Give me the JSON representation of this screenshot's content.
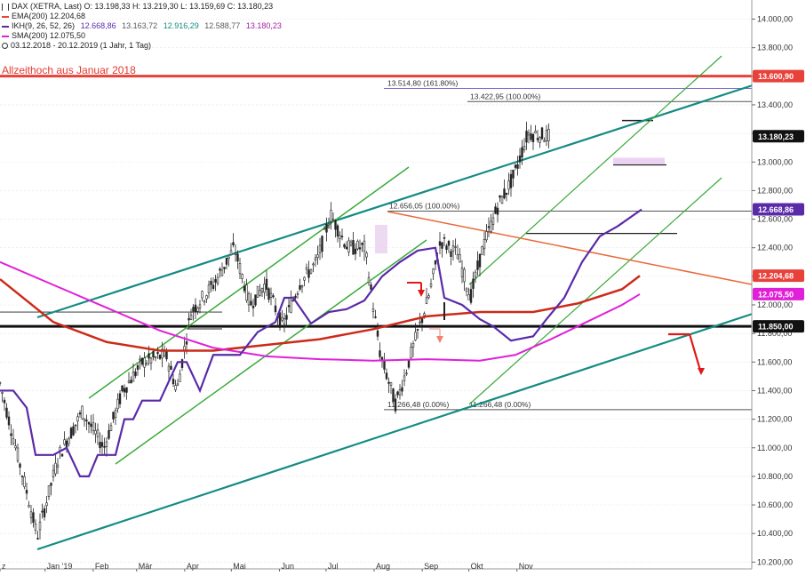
{
  "header": {
    "line1": "DAX (XETRA, Last)  O: 13.198,33  H: 13.219,30  L: 13.159,69  C: 13.180,23",
    "ema": "EMA(200)  12.204,68",
    "ikh_label": "IKH(9, 26, 52, 26)",
    "ikh_vals": [
      "12.668,86",
      "13.163,72",
      "12.916,29",
      "12.588,77",
      "13.180,23"
    ],
    "sma": "SMA(200)  12.075,50",
    "range": "03.12.2018 - 20.12.2019  (1 Jahr, 1 Tag)"
  },
  "annotation_ath": "Allzeithoch aus Januar 2018",
  "colors": {
    "ema": "#e8413a",
    "ema_dark": "#cc2a1a",
    "ikh": "#5a2aa8",
    "sma": "#e020d8",
    "channel_green": "#3aaa3a",
    "teal": "#148c82",
    "down_line": "#e86a3a",
    "ath_line": "#e8413a",
    "support": "#111111",
    "grid": "#d8d8d8",
    "candle": "#222222",
    "red_arrow": "#e01818"
  },
  "chart_data": {
    "type": "candlestick",
    "ylim": [
      10150,
      14150
    ],
    "y_ticks": [
      "14.000,00",
      "13.800,00",
      "13.600,00",
      "13.400,00",
      "13.200,00",
      "13.000,00",
      "12.800,00",
      "12.600,00",
      "12.400,00",
      "12.200,00",
      "12.000,00",
      "11.800,00",
      "11.600,00",
      "11.400,00",
      "11.200,00",
      "11.000,00",
      "10.800,00",
      "10.600,00",
      "10.400,00",
      "10.200,00"
    ],
    "x_ticks": [
      "z",
      "Jan '19",
      "Feb",
      "Mär",
      "Apr",
      "Mai",
      "Jun",
      "Jul",
      "Aug",
      "Sep",
      "Okt",
      "Nov"
    ],
    "price_path": [
      [
        "2018-12-03",
        11450
      ],
      [
        "2018-12-20",
        10700
      ],
      [
        "2018-12-27",
        10380
      ],
      [
        "2019-01-10",
        10950
      ],
      [
        "2019-01-25",
        11250
      ],
      [
        "2019-02-08",
        11000
      ],
      [
        "2019-02-20",
        11400
      ],
      [
        "2019-03-05",
        11600
      ],
      [
        "2019-03-20",
        11650
      ],
      [
        "2019-03-27",
        11400
      ],
      [
        "2019-04-05",
        11950
      ],
      [
        "2019-04-20",
        12150
      ],
      [
        "2019-05-03",
        12400
      ],
      [
        "2019-05-13",
        12000
      ],
      [
        "2019-05-23",
        12150
      ],
      [
        "2019-06-03",
        11850
      ],
      [
        "2019-06-14",
        12150
      ],
      [
        "2019-06-25",
        12300
      ],
      [
        "2019-07-04",
        12630
      ],
      [
        "2019-07-15",
        12400
      ],
      [
        "2019-07-26",
        12400
      ],
      [
        "2019-08-05",
        11650
      ],
      [
        "2019-08-15",
        11300
      ],
      [
        "2019-08-26",
        11700
      ],
      [
        "2019-09-05",
        12050
      ],
      [
        "2019-09-13",
        12450
      ],
      [
        "2019-09-24",
        12350
      ],
      [
        "2019-10-02",
        12050
      ],
      [
        "2019-10-10",
        12400
      ],
      [
        "2019-10-20",
        12700
      ],
      [
        "2019-10-30",
        12900
      ],
      [
        "2019-11-08",
        13200
      ],
      [
        "2019-11-22",
        13180
      ]
    ],
    "price_labels": [
      {
        "label": "13.600,90",
        "value": 13600.9,
        "color": "#e8413a"
      },
      {
        "label": "13.180,23",
        "value": 13180.23,
        "color": "#111111"
      },
      {
        "label": "12.668,86",
        "value": 12668.86,
        "color": "#5a2aa8"
      },
      {
        "label": "12.204,68",
        "value": 12204.68,
        "color": "#e8413a"
      },
      {
        "label": "12.075,50",
        "value": 12075.5,
        "color": "#e020d8"
      },
      {
        "label": "11.850,00",
        "value": 11850,
        "color": "#111111"
      }
    ],
    "fib_labels": [
      {
        "text": "13.514,80 (161.80%)",
        "value": 13514.8
      },
      {
        "text": "13.422,95 (100.00%)",
        "value": 13422.95
      },
      {
        "text": "12.656,05 (100.00%)",
        "value": 12656.05
      },
      {
        "text": "11.266,48 (0.00%)",
        "value": 11266.48
      },
      {
        "text": "11.266,48 (0.00%)",
        "value": 11266.48
      }
    ],
    "horizontal_levels": {
      "all_time_high": 13600.9,
      "support": 11850
    }
  }
}
